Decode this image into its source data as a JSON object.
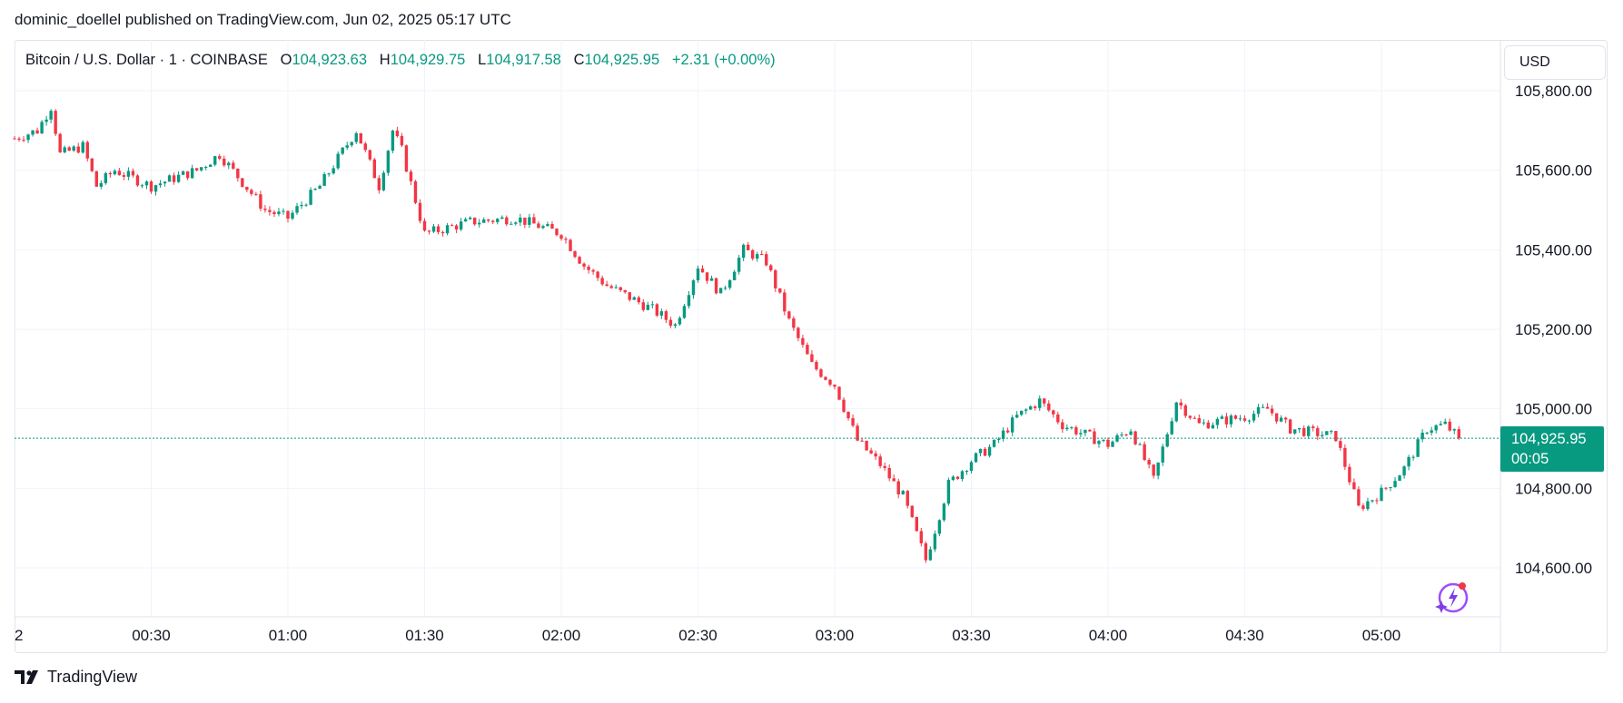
{
  "byline": "dominic_doellel published on TradingView.com, Jun 02, 2025 05:17 UTC",
  "legend": {
    "symbol": "Bitcoin / U.S. Dollar · 1 · COINBASE",
    "o_key": "O",
    "o": "104,923.63",
    "h_key": "H",
    "h": "104,929.75",
    "l_key": "L",
    "l": "104,917.58",
    "c_key": "C",
    "c": "104,925.95",
    "change": "+2.31 (+0.00%)"
  },
  "currency_button": "USD",
  "last_price": {
    "value": "104,925.95",
    "countdown": "00:05"
  },
  "footer": {
    "brand": "TradingView"
  },
  "colors": {
    "up": "#089981",
    "down": "#f23645",
    "grid": "#f0f3fa",
    "text": "#131722"
  },
  "icons": {
    "brand": "tradingview-logo-icon",
    "assistant": "sparkle-lightning-icon"
  },
  "chart_data": {
    "type": "candlestick",
    "interval_minutes": 1,
    "y_ticks": [
      "105,800.00",
      "105,600.00",
      "105,400.00",
      "105,200.00",
      "105,000.00",
      "104,800.00",
      "104,600.00"
    ],
    "ylim": [
      104600,
      105800
    ],
    "x_ticks": [
      "2",
      "00:30",
      "01:00",
      "01:30",
      "02:00",
      "02:30",
      "03:00",
      "03:30",
      "04:00",
      "04:30",
      "05:00"
    ],
    "last": 104925.95,
    "close_path": [
      {
        "t": "00:00",
        "close": 105680
      },
      {
        "t": "00:05",
        "close": 105700
      },
      {
        "t": "00:08",
        "close": 105760
      },
      {
        "t": "00:10",
        "close": 105640
      },
      {
        "t": "00:15",
        "close": 105660
      },
      {
        "t": "00:18",
        "close": 105560
      },
      {
        "t": "00:22",
        "close": 105600
      },
      {
        "t": "00:30",
        "close": 105560
      },
      {
        "t": "00:40",
        "close": 105600
      },
      {
        "t": "00:45",
        "close": 105640
      },
      {
        "t": "00:55",
        "close": 105500
      },
      {
        "t": "01:00",
        "close": 105480
      },
      {
        "t": "01:07",
        "close": 105560
      },
      {
        "t": "01:15",
        "close": 105700
      },
      {
        "t": "01:20",
        "close": 105560
      },
      {
        "t": "01:23",
        "close": 105700
      },
      {
        "t": "01:25",
        "close": 105650
      },
      {
        "t": "01:30",
        "close": 105440
      },
      {
        "t": "01:40",
        "close": 105470
      },
      {
        "t": "01:50",
        "close": 105480
      },
      {
        "t": "02:00",
        "close": 105440
      },
      {
        "t": "02:05",
        "close": 105360
      },
      {
        "t": "02:10",
        "close": 105310
      },
      {
        "t": "02:20",
        "close": 105250
      },
      {
        "t": "02:25",
        "close": 105210
      },
      {
        "t": "02:30",
        "close": 105360
      },
      {
        "t": "02:35",
        "close": 105290
      },
      {
        "t": "02:40",
        "close": 105400
      },
      {
        "t": "02:45",
        "close": 105370
      },
      {
        "t": "02:50",
        "close": 105220
      },
      {
        "t": "02:55",
        "close": 105110
      },
      {
        "t": "03:00",
        "close": 105060
      },
      {
        "t": "03:05",
        "close": 104920
      },
      {
        "t": "03:10",
        "close": 104860
      },
      {
        "t": "03:15",
        "close": 104780
      },
      {
        "t": "03:20",
        "close": 104620
      },
      {
        "t": "03:25",
        "close": 104810
      },
      {
        "t": "03:30",
        "close": 104870
      },
      {
        "t": "03:35",
        "close": 104910
      },
      {
        "t": "03:40",
        "close": 104980
      },
      {
        "t": "03:45",
        "close": 105020
      },
      {
        "t": "03:50",
        "close": 104960
      },
      {
        "t": "04:00",
        "close": 104910
      },
      {
        "t": "04:05",
        "close": 104950
      },
      {
        "t": "04:10",
        "close": 104820
      },
      {
        "t": "04:15",
        "close": 105020
      },
      {
        "t": "04:20",
        "close": 104960
      },
      {
        "t": "04:30",
        "close": 104980
      },
      {
        "t": "04:35",
        "close": 105000
      },
      {
        "t": "04:40",
        "close": 104950
      },
      {
        "t": "04:50",
        "close": 104930
      },
      {
        "t": "04:55",
        "close": 104750
      },
      {
        "t": "05:00",
        "close": 104790
      },
      {
        "t": "05:05",
        "close": 104850
      },
      {
        "t": "05:10",
        "close": 104950
      },
      {
        "t": "05:14",
        "close": 104960
      },
      {
        "t": "05:17",
        "close": 104925.95
      }
    ]
  }
}
